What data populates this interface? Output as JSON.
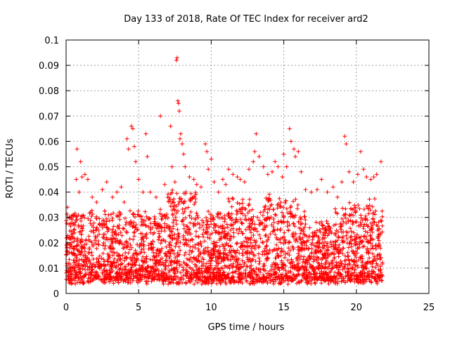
{
  "chart_data": {
    "type": "scatter",
    "title": "Day 133 of 2018, Rate Of TEC Index for receiver ard2",
    "xlabel": "GPS time / hours",
    "ylabel": "ROTI / TECUs",
    "xlim": [
      0,
      25
    ],
    "ylim": [
      0,
      0.1
    ],
    "xticks": [
      "0",
      "5",
      "10",
      "15",
      "20",
      "25"
    ],
    "yticks": [
      "0",
      "0.01",
      "0.02",
      "0.03",
      "0.04",
      "0.05",
      "0.06",
      "0.07",
      "0.08",
      "0.09",
      "0.1"
    ],
    "grid": true,
    "marker": "+",
    "series": [
      {
        "color": "#ff0000",
        "data_extent_hours": [
          0,
          21.8
        ],
        "points": [
          [
            0.1,
            0.034
          ],
          [
            0.3,
            0.022
          ],
          [
            0.5,
            0.031
          ],
          [
            0.7,
            0.045
          ],
          [
            0.75,
            0.057
          ],
          [
            0.9,
            0.04
          ],
          [
            1.0,
            0.052
          ],
          [
            1.1,
            0.046
          ],
          [
            1.3,
            0.047
          ],
          [
            1.5,
            0.045
          ],
          [
            1.8,
            0.038
          ],
          [
            2.1,
            0.036
          ],
          [
            2.5,
            0.041
          ],
          [
            2.8,
            0.044
          ],
          [
            3.2,
            0.038
          ],
          [
            3.5,
            0.04
          ],
          [
            3.8,
            0.042
          ],
          [
            4.0,
            0.036
          ],
          [
            4.2,
            0.061
          ],
          [
            4.3,
            0.057
          ],
          [
            4.5,
            0.066
          ],
          [
            4.6,
            0.065
          ],
          [
            4.7,
            0.058
          ],
          [
            4.8,
            0.052
          ],
          [
            5.0,
            0.045
          ],
          [
            5.3,
            0.04
          ],
          [
            5.5,
            0.063
          ],
          [
            5.6,
            0.054
          ],
          [
            5.8,
            0.04
          ],
          [
            6.2,
            0.038
          ],
          [
            6.5,
            0.07
          ],
          [
            6.8,
            0.043
          ],
          [
            7.0,
            0.038
          ],
          [
            7.2,
            0.066
          ],
          [
            7.3,
            0.05
          ],
          [
            7.5,
            0.044
          ],
          [
            7.6,
            0.092
          ],
          [
            7.65,
            0.093
          ],
          [
            7.7,
            0.076
          ],
          [
            7.75,
            0.075
          ],
          [
            7.8,
            0.072
          ],
          [
            7.85,
            0.061
          ],
          [
            7.9,
            0.063
          ],
          [
            8.0,
            0.059
          ],
          [
            8.1,
            0.055
          ],
          [
            8.2,
            0.05
          ],
          [
            8.5,
            0.046
          ],
          [
            8.8,
            0.045
          ],
          [
            9.0,
            0.043
          ],
          [
            9.3,
            0.042
          ],
          [
            9.6,
            0.059
          ],
          [
            9.7,
            0.056
          ],
          [
            9.8,
            0.049
          ],
          [
            10.0,
            0.053
          ],
          [
            10.2,
            0.044
          ],
          [
            10.5,
            0.04
          ],
          [
            10.8,
            0.045
          ],
          [
            11.0,
            0.043
          ],
          [
            11.2,
            0.049
          ],
          [
            11.5,
            0.047
          ],
          [
            11.8,
            0.046
          ],
          [
            12.0,
            0.045
          ],
          [
            12.3,
            0.044
          ],
          [
            12.6,
            0.049
          ],
          [
            12.9,
            0.052
          ],
          [
            13.0,
            0.056
          ],
          [
            13.1,
            0.063
          ],
          [
            13.3,
            0.054
          ],
          [
            13.6,
            0.05
          ],
          [
            13.9,
            0.047
          ],
          [
            14.2,
            0.048
          ],
          [
            14.4,
            0.052
          ],
          [
            14.6,
            0.05
          ],
          [
            14.9,
            0.046
          ],
          [
            15.0,
            0.055
          ],
          [
            15.2,
            0.05
          ],
          [
            15.4,
            0.065
          ],
          [
            15.5,
            0.06
          ],
          [
            15.7,
            0.057
          ],
          [
            15.8,
            0.054
          ],
          [
            16.0,
            0.056
          ],
          [
            16.2,
            0.048
          ],
          [
            16.5,
            0.041
          ],
          [
            16.9,
            0.04
          ],
          [
            17.3,
            0.041
          ],
          [
            17.6,
            0.045
          ],
          [
            18.0,
            0.04
          ],
          [
            18.4,
            0.042
          ],
          [
            18.7,
            0.038
          ],
          [
            19.0,
            0.044
          ],
          [
            19.2,
            0.062
          ],
          [
            19.3,
            0.059
          ],
          [
            19.5,
            0.048
          ],
          [
            19.8,
            0.044
          ],
          [
            20.1,
            0.047
          ],
          [
            20.3,
            0.056
          ],
          [
            20.5,
            0.049
          ],
          [
            20.7,
            0.046
          ],
          [
            21.0,
            0.045
          ],
          [
            21.2,
            0.046
          ],
          [
            21.4,
            0.047
          ],
          [
            21.7,
            0.052
          ]
        ]
      }
    ]
  }
}
